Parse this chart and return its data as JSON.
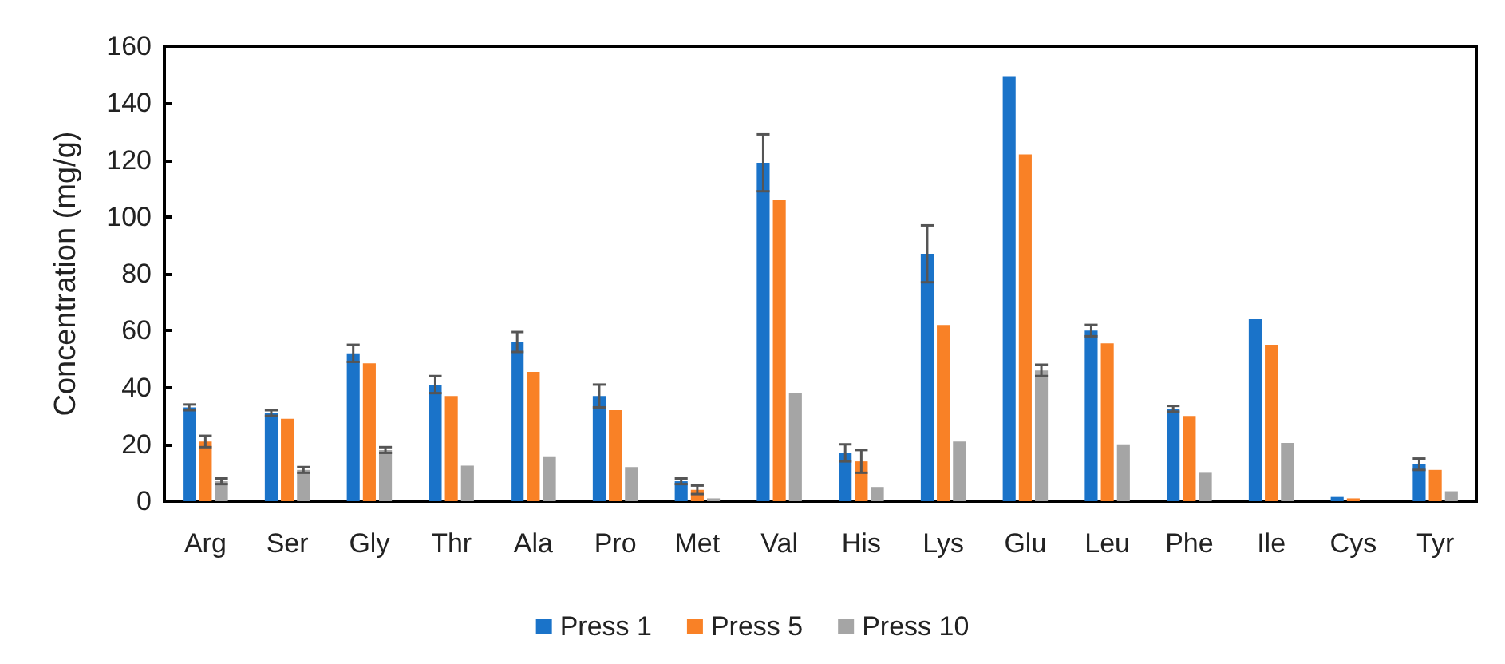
{
  "chart_data": {
    "type": "bar",
    "ylabel": "Concentration (mg/g)",
    "categories": [
      "Arg",
      "Ser",
      "Gly",
      "Thr",
      "Ala",
      "Pro",
      "Met",
      "Val",
      "His",
      "Lys",
      "Glu",
      "Leu",
      "Phe",
      "Ile",
      "Cys",
      "Tyr"
    ],
    "series": [
      {
        "name": "Press 1",
        "color": "#1a73c9",
        "values": [
          33,
          31,
          52,
          41,
          56,
          37,
          7,
          119,
          17,
          87,
          149.5,
          60,
          32.5,
          64,
          1.5,
          13
        ],
        "errors": [
          1,
          1,
          3,
          3,
          3.5,
          4,
          1,
          10,
          3,
          10,
          null,
          2,
          1,
          null,
          null,
          2
        ]
      },
      {
        "name": "Press 5",
        "color": "#f98126",
        "values": [
          21,
          29,
          48.5,
          37,
          45.5,
          32,
          4,
          106,
          14,
          62,
          122,
          55.5,
          30,
          55,
          1,
          11
        ],
        "errors": [
          2,
          null,
          null,
          null,
          null,
          null,
          1.5,
          null,
          4,
          null,
          null,
          null,
          null,
          null,
          null,
          null
        ]
      },
      {
        "name": "Press 10",
        "color": "#a5a5a5",
        "values": [
          7,
          11,
          18,
          12.5,
          15.5,
          12,
          1,
          38,
          5,
          21,
          46,
          20,
          10,
          20.5,
          null,
          3.5
        ],
        "errors": [
          1,
          1,
          1,
          null,
          null,
          null,
          null,
          null,
          null,
          null,
          2,
          null,
          null,
          null,
          null,
          null
        ]
      }
    ],
    "ylim": [
      0,
      160
    ],
    "yticks": [
      0,
      20,
      40,
      60,
      80,
      100,
      120,
      140,
      160
    ],
    "grid": false,
    "legend": "bottom"
  }
}
